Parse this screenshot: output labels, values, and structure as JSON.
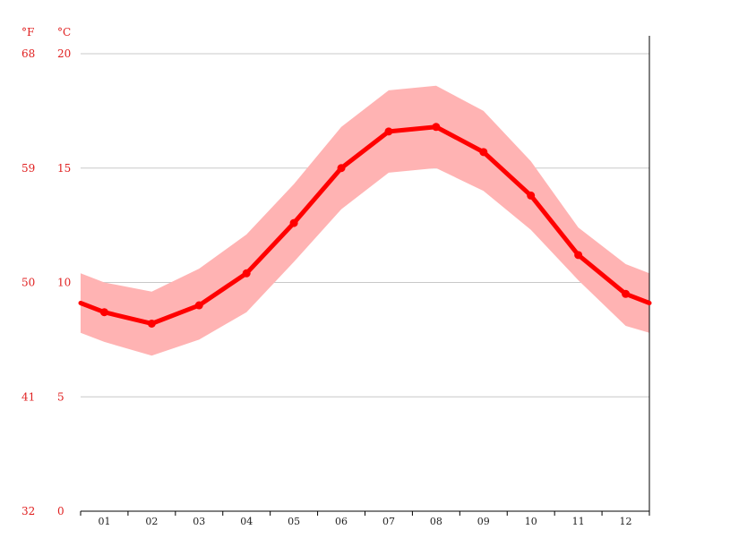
{
  "colors": {
    "line": "#ff0000",
    "band": "#ffb3b3",
    "grid": "#c8c8c8",
    "axis_label": "#e02020",
    "tick_label": "#222222"
  },
  "chart_data": {
    "type": "line",
    "units": {
      "fahrenheit": "°F",
      "celsius": "°C"
    },
    "x": [
      "01",
      "02",
      "03",
      "04",
      "05",
      "06",
      "07",
      "08",
      "09",
      "10",
      "11",
      "12"
    ],
    "yticks_c": [
      "0",
      "5",
      "10",
      "15",
      "20"
    ],
    "yticks_f": [
      "32",
      "41",
      "50",
      "59",
      "68"
    ],
    "ylim": [
      0,
      20
    ],
    "grid": true,
    "series": [
      {
        "values": [
          8.7,
          8.2,
          9.0,
          10.4,
          12.6,
          15.0,
          16.6,
          16.8,
          15.7,
          13.8,
          11.2,
          9.5
        ]
      }
    ],
    "band": {
      "upper": [
        10.0,
        9.6,
        10.6,
        12.1,
        14.3,
        16.8,
        18.4,
        18.6,
        17.5,
        15.3,
        12.4,
        10.8
      ],
      "lower": [
        7.4,
        6.8,
        7.5,
        8.7,
        10.9,
        13.2,
        14.8,
        15.0,
        14.0,
        12.3,
        10.1,
        8.1
      ]
    },
    "edges": {
      "mean": [
        9.1,
        9.1
      ],
      "upper": [
        10.4,
        10.4
      ],
      "lower": [
        7.8,
        7.8
      ]
    }
  }
}
